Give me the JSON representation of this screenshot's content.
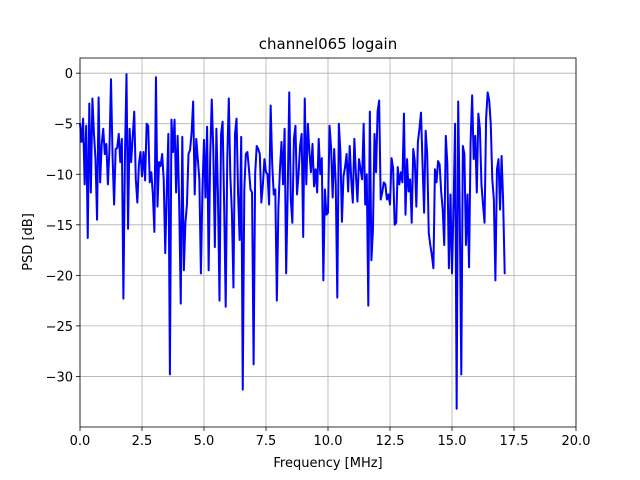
{
  "chart_data": {
    "type": "line",
    "title": "channel065 logain",
    "xlabel": "Frequency [MHz]",
    "ylabel": "PSD [dB]",
    "xlim": [
      0,
      20
    ],
    "ylim": [
      -35,
      1.5
    ],
    "grid": true,
    "line_color": "#0000ff",
    "x_ticks": [
      0,
      2.5,
      5,
      7.5,
      10,
      12.5,
      15,
      17.5,
      20
    ],
    "x_tick_labels": [
      "0.0",
      "2.5",
      "5.0",
      "7.5",
      "10.0",
      "12.5",
      "15.0",
      "17.5",
      "20.0"
    ],
    "y_ticks": [
      0,
      -5,
      -10,
      -15,
      -20,
      -25,
      -30
    ],
    "y_tick_labels": [
      "0",
      "−5",
      "−10",
      "−15",
      "−20",
      "−25",
      "−30"
    ],
    "series": [
      {
        "x_start": 0,
        "x_step": 0.0625,
        "values": [
          -5.0,
          -6.8,
          -4.5,
          -11.0,
          -5.2,
          -16.3,
          -3.0,
          -11.8,
          -2.5,
          -6.0,
          -8.5,
          -14.5,
          -2.4,
          -10.8,
          -7.0,
          -5.5,
          -8.0,
          -7.0,
          -11.0,
          -7.5,
          -0.6,
          -8.2,
          -13.0,
          -7.5,
          -7.4,
          -6.0,
          -8.8,
          -6.5,
          -22.3,
          -8.2,
          -0.1,
          -15.4,
          -5.5,
          -8.8,
          -6.3,
          -3.8,
          -10.5,
          -12.8,
          -9.0,
          -7.8,
          -10.2,
          -7.8,
          -10.6,
          -5.0,
          -5.2,
          -10.8,
          -9.8,
          -12.0,
          -15.7,
          -0.4,
          -13.2,
          -8.8,
          -9.2,
          -8.0,
          -10.5,
          -17.8,
          -11.5,
          -6.0,
          -29.8,
          -4.6,
          -7.8,
          -4.6,
          -11.8,
          -6.2,
          -13.0,
          -22.8,
          -6.3,
          -19.5,
          -14.8,
          -13.0,
          -8.0,
          -7.6,
          -5.9,
          -2.8,
          -12.0,
          -6.5,
          -8.5,
          -10.5,
          -19.8,
          -11.5,
          -6.6,
          -12.3,
          -5.3,
          -19.5,
          -8.2,
          -2.6,
          -7.6,
          -17.2,
          -5.5,
          -12.0,
          -22.5,
          -6.0,
          -4.8,
          -13.0,
          -23.1,
          -8.5,
          -2.5,
          -10.2,
          -13.8,
          -21.2,
          -6.0,
          -4.5,
          -12.0,
          -16.5,
          -6.3,
          -31.3,
          -11.5,
          -8.0,
          -7.8,
          -9.5,
          -11.5,
          -11.8,
          -28.8,
          -10.0,
          -7.2,
          -7.5,
          -8.0,
          -12.8,
          -11.0,
          -8.5,
          -9.8,
          -10.0,
          -13.0,
          -3.2,
          -9.0,
          -12.0,
          -11.5,
          -22.5,
          -13.3,
          -9.5,
          -6.8,
          -11.0,
          -5.5,
          -19.8,
          -11.8,
          -1.9,
          -12.5,
          -14.8,
          -6.5,
          -5.2,
          -12.0,
          -10.0,
          -7.2,
          -6.0,
          -16.2,
          -2.5,
          -11.0,
          -5.0,
          -7.8,
          -9.8,
          -7.0,
          -11.2,
          -9.5,
          -11.8,
          -6.5,
          -10.0,
          -8.4,
          -20.5,
          -11.5,
          -14.0,
          -13.8,
          -5.2,
          -7.4,
          -12.3,
          -7.5,
          -11.0,
          -22.2,
          -5.0,
          -7.8,
          -14.7,
          -10.2,
          -9.3,
          -8.0,
          -11.7,
          -7.2,
          -10.5,
          -12.8,
          -6.5,
          -10.0,
          -12.7,
          -8.5,
          -9.5,
          -10.5,
          -5.0,
          -13.0,
          -10.0,
          -23.0,
          -3.8,
          -18.5,
          -15.5,
          -6.0,
          -9.8,
          -3.8,
          -2.7,
          -12.5,
          -11.8,
          -10.8,
          -11.0,
          -12.5,
          -12.0,
          -13.0,
          -8.4,
          -9.4,
          -15.0,
          -14.8,
          -9.3,
          -11.0,
          -9.8,
          -10.8,
          -4.0,
          -14.0,
          -8.5,
          -11.7,
          -10.5,
          -14.8,
          -7.5,
          -8.7,
          -13.2,
          -6.8,
          -5.5,
          -3.9,
          -9.0,
          -13.8,
          -5.7,
          -8.0,
          -15.8,
          -17.0,
          -18.0,
          -19.3,
          -9.5,
          -10.8,
          -8.7,
          -9.0,
          -11.7,
          -13.5,
          -17.0,
          -6.2,
          -9.0,
          -19.3,
          -12.0,
          -19.8,
          -13.2,
          -5.0,
          -33.2,
          -2.8,
          -13.8,
          -29.8,
          -7.2,
          -8.0,
          -17.0,
          -12.0,
          -19.2,
          -6.8,
          -2.2,
          -8.5,
          -6.2,
          -11.8,
          -4.0,
          -5.5,
          -11.0,
          -13.0,
          -14.8,
          -4.5,
          -1.9,
          -2.7,
          -5.0,
          -10.5,
          -12.5,
          -20.5,
          -9.5,
          -8.5,
          -13.5,
          -8.2,
          -12.7,
          -19.8
        ]
      }
    ]
  }
}
